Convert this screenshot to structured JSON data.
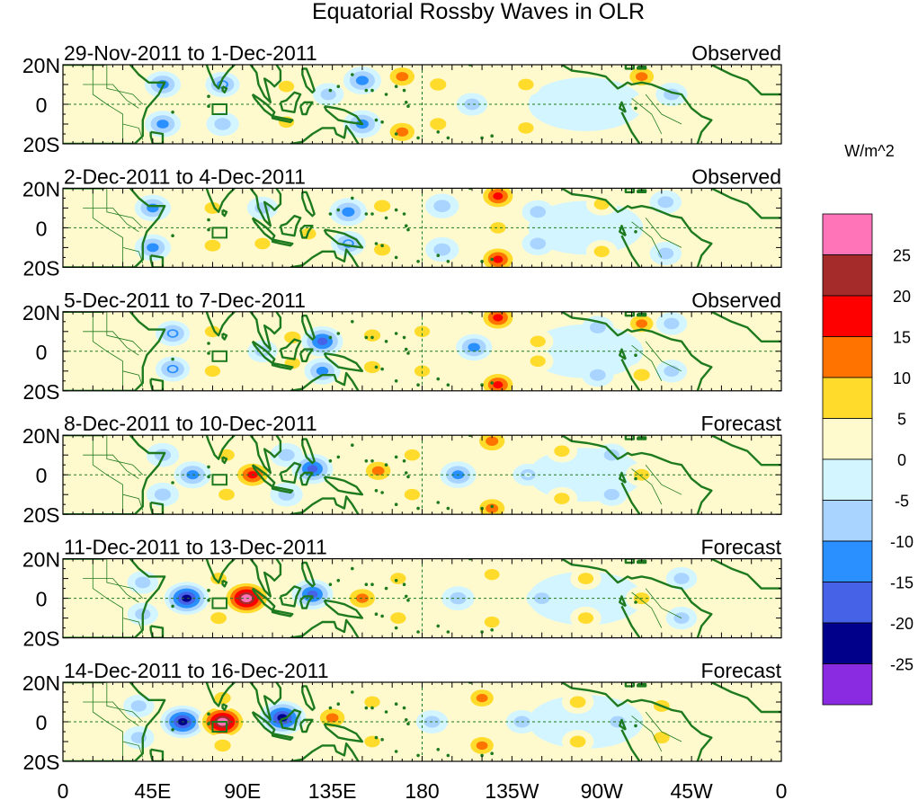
{
  "chart_data": {
    "type": "heatmap",
    "title": "Equatorial Rossby Waves in OLR",
    "units": "W/m^2",
    "x_ticks": [
      "0",
      "45E",
      "90E",
      "135E",
      "180",
      "135W",
      "90W",
      "45W",
      "0"
    ],
    "x_tick_degrees": [
      0,
      45,
      90,
      135,
      180,
      225,
      270,
      315,
      360
    ],
    "y_ticks": [
      "20N",
      "0",
      "20S"
    ],
    "y_tick_degrees": [
      20,
      0,
      -20
    ],
    "xlim": [
      0,
      360
    ],
    "ylim": [
      -20,
      20
    ],
    "dateline_degrees": 180,
    "box_region": {
      "lon": [
        75,
        82
      ],
      "lat": [
        -5,
        0
      ]
    },
    "colorbar": {
      "levels": [
        "25",
        "20",
        "15",
        "10",
        "5",
        "0",
        "-5",
        "-10",
        "-15",
        "-20",
        "-25"
      ],
      "colors": [
        "#ff73b9",
        "#a52a2a",
        "#ff0000",
        "#ff7300",
        "#ffdc2c",
        "#fffacd",
        "#d3f5ff",
        "#a9d4ff",
        "#2a8fff",
        "#4662e6",
        "#00008b",
        "#8a2be2"
      ]
    },
    "panels": [
      {
        "dates": "29-Nov-2011 to 1-Dec-2011",
        "kind": "Observed",
        "features": [
          {
            "lon": 50,
            "lat": 10,
            "value": -12
          },
          {
            "lon": 50,
            "lat": -10,
            "value": -12
          },
          {
            "lon": 80,
            "lat": 10,
            "value": -10
          },
          {
            "lon": 80,
            "lat": -10,
            "value": -8
          },
          {
            "lon": 112,
            "lat": 9,
            "value": 6
          },
          {
            "lon": 112,
            "lat": -9,
            "value": 6
          },
          {
            "lon": 133,
            "lat": 5,
            "value": -6
          },
          {
            "lon": 150,
            "lat": 12,
            "value": -14
          },
          {
            "lon": 150,
            "lat": -10,
            "value": -14
          },
          {
            "lon": 170,
            "lat": 14,
            "value": 13
          },
          {
            "lon": 170,
            "lat": -14,
            "value": 13
          },
          {
            "lon": 188,
            "lat": 10,
            "value": 8
          },
          {
            "lon": 188,
            "lat": -10,
            "value": 8
          },
          {
            "lon": 205,
            "lat": 0,
            "value": -6
          },
          {
            "lon": 232,
            "lat": 10,
            "value": 6
          },
          {
            "lon": 232,
            "lat": -12,
            "value": 6
          },
          {
            "lon": 290,
            "lat": 14,
            "value": 12
          },
          {
            "lon": 292,
            "lat": 0,
            "value": 4
          },
          {
            "lon": 305,
            "lat": 5,
            "value": -7
          }
        ]
      },
      {
        "dates": "2-Dec-2011 to 4-Dec-2011",
        "kind": "Observed",
        "features": [
          {
            "lon": 45,
            "lat": 10,
            "value": -12
          },
          {
            "lon": 45,
            "lat": -10,
            "value": -12
          },
          {
            "lon": 75,
            "lat": 10,
            "value": 7
          },
          {
            "lon": 75,
            "lat": -9,
            "value": 7
          },
          {
            "lon": 100,
            "lat": 10,
            "value": -6
          },
          {
            "lon": 100,
            "lat": -8,
            "value": 6
          },
          {
            "lon": 123,
            "lat": -3,
            "value": 6
          },
          {
            "lon": 143,
            "lat": 8,
            "value": -14
          },
          {
            "lon": 143,
            "lat": -8,
            "value": -10
          },
          {
            "lon": 160,
            "lat": 11,
            "value": 8
          },
          {
            "lon": 160,
            "lat": -11,
            "value": 8
          },
          {
            "lon": 190,
            "lat": 11,
            "value": -9
          },
          {
            "lon": 190,
            "lat": -11,
            "value": -9
          },
          {
            "lon": 218,
            "lat": 16,
            "value": 16
          },
          {
            "lon": 218,
            "lat": -16,
            "value": 16
          },
          {
            "lon": 218,
            "lat": 0,
            "value": 6
          },
          {
            "lon": 238,
            "lat": 8,
            "value": -7
          },
          {
            "lon": 238,
            "lat": -8,
            "value": -7
          },
          {
            "lon": 270,
            "lat": 12,
            "value": 6
          },
          {
            "lon": 270,
            "lat": -12,
            "value": 6
          },
          {
            "lon": 302,
            "lat": 13,
            "value": -7
          },
          {
            "lon": 302,
            "lat": -13,
            "value": -7
          }
        ]
      },
      {
        "dates": "5-Dec-2011 to 7-Dec-2011",
        "kind": "Observed",
        "features": [
          {
            "lon": 55,
            "lat": 9,
            "value": -10
          },
          {
            "lon": 55,
            "lat": -9,
            "value": -10
          },
          {
            "lon": 75,
            "lat": 10,
            "value": 6
          },
          {
            "lon": 75,
            "lat": -10,
            "value": 6
          },
          {
            "lon": 100,
            "lat": 0,
            "value": -5
          },
          {
            "lon": 115,
            "lat": 7,
            "value": 8
          },
          {
            "lon": 115,
            "lat": -6,
            "value": 6
          },
          {
            "lon": 130,
            "lat": 5,
            "value": -18
          },
          {
            "lon": 130,
            "lat": -10,
            "value": -12
          },
          {
            "lon": 155,
            "lat": 8,
            "value": 8
          },
          {
            "lon": 155,
            "lat": -8,
            "value": 8
          },
          {
            "lon": 180,
            "lat": 10,
            "value": 6
          },
          {
            "lon": 180,
            "lat": -10,
            "value": 6
          },
          {
            "lon": 206,
            "lat": 2,
            "value": -12
          },
          {
            "lon": 218,
            "lat": 17,
            "value": 16
          },
          {
            "lon": 218,
            "lat": -17,
            "value": 16
          },
          {
            "lon": 238,
            "lat": 5,
            "value": 6
          },
          {
            "lon": 238,
            "lat": -5,
            "value": 6
          },
          {
            "lon": 268,
            "lat": 12,
            "value": -7
          },
          {
            "lon": 268,
            "lat": -12,
            "value": -7
          },
          {
            "lon": 290,
            "lat": 14,
            "value": 10
          },
          {
            "lon": 290,
            "lat": -12,
            "value": 8
          },
          {
            "lon": 305,
            "lat": 14,
            "value": -6
          },
          {
            "lon": 305,
            "lat": -10,
            "value": -6
          }
        ]
      },
      {
        "dates": "8-Dec-2011 to 10-Dec-2011",
        "kind": "Forecast",
        "features": [
          {
            "lon": 50,
            "lat": 10,
            "value": -8
          },
          {
            "lon": 50,
            "lat": -10,
            "value": -8
          },
          {
            "lon": 65,
            "lat": 0,
            "value": -13
          },
          {
            "lon": 82,
            "lat": 10,
            "value": 7
          },
          {
            "lon": 82,
            "lat": -10,
            "value": 7
          },
          {
            "lon": 95,
            "lat": 0,
            "value": 17
          },
          {
            "lon": 112,
            "lat": 10,
            "value": -8
          },
          {
            "lon": 112,
            "lat": -10,
            "value": -8
          },
          {
            "lon": 125,
            "lat": 3,
            "value": -18
          },
          {
            "lon": 158,
            "lat": 2,
            "value": 13
          },
          {
            "lon": 175,
            "lat": 10,
            "value": 6
          },
          {
            "lon": 175,
            "lat": -10,
            "value": 6
          },
          {
            "lon": 198,
            "lat": 0,
            "value": -12
          },
          {
            "lon": 215,
            "lat": 17,
            "value": 14
          },
          {
            "lon": 215,
            "lat": -17,
            "value": 14
          },
          {
            "lon": 233,
            "lat": 0,
            "value": -5
          },
          {
            "lon": 250,
            "lat": 12,
            "value": 6
          },
          {
            "lon": 250,
            "lat": -12,
            "value": 6
          },
          {
            "lon": 275,
            "lat": 10,
            "value": -6
          },
          {
            "lon": 275,
            "lat": -10,
            "value": -6
          },
          {
            "lon": 290,
            "lat": 0,
            "value": 7
          }
        ]
      },
      {
        "dates": "11-Dec-2011 to 13-Dec-2011",
        "kind": "Forecast",
        "features": [
          {
            "lon": 40,
            "lat": 8,
            "value": -6
          },
          {
            "lon": 40,
            "lat": -8,
            "value": -6
          },
          {
            "lon": 62,
            "lat": 0,
            "value": -22
          },
          {
            "lon": 92,
            "lat": 0,
            "value": 27
          },
          {
            "lon": 78,
            "lat": 10,
            "value": 7
          },
          {
            "lon": 78,
            "lat": -10,
            "value": 7
          },
          {
            "lon": 125,
            "lat": 2,
            "value": -18
          },
          {
            "lon": 150,
            "lat": 0,
            "value": 14
          },
          {
            "lon": 168,
            "lat": 10,
            "value": 6
          },
          {
            "lon": 168,
            "lat": -10,
            "value": 6
          },
          {
            "lon": 198,
            "lat": 0,
            "value": -8
          },
          {
            "lon": 215,
            "lat": 12,
            "value": 5
          },
          {
            "lon": 215,
            "lat": -12,
            "value": 5
          },
          {
            "lon": 240,
            "lat": 0,
            "value": -6
          },
          {
            "lon": 262,
            "lat": 10,
            "value": 6
          },
          {
            "lon": 262,
            "lat": -10,
            "value": 6
          },
          {
            "lon": 290,
            "lat": 0,
            "value": 7
          },
          {
            "lon": 310,
            "lat": 10,
            "value": -6
          },
          {
            "lon": 310,
            "lat": -10,
            "value": -6
          }
        ]
      },
      {
        "dates": "14-Dec-2011 to 16-Dec-2011",
        "kind": "Forecast",
        "features": [
          {
            "lon": 38,
            "lat": 8,
            "value": -6
          },
          {
            "lon": 38,
            "lat": -8,
            "value": -6
          },
          {
            "lon": 60,
            "lat": 0,
            "value": -22
          },
          {
            "lon": 80,
            "lat": 0,
            "value": 27
          },
          {
            "lon": 80,
            "lat": 12,
            "value": 8
          },
          {
            "lon": 80,
            "lat": -12,
            "value": 8
          },
          {
            "lon": 110,
            "lat": 2,
            "value": -24
          },
          {
            "lon": 135,
            "lat": 2,
            "value": 13
          },
          {
            "lon": 155,
            "lat": 10,
            "value": 6
          },
          {
            "lon": 155,
            "lat": -10,
            "value": 6
          },
          {
            "lon": 185,
            "lat": 0,
            "value": -7
          },
          {
            "lon": 210,
            "lat": 12,
            "value": 10
          },
          {
            "lon": 210,
            "lat": -12,
            "value": 10
          },
          {
            "lon": 230,
            "lat": 0,
            "value": -7
          },
          {
            "lon": 258,
            "lat": 10,
            "value": 7
          },
          {
            "lon": 258,
            "lat": -10,
            "value": 7
          },
          {
            "lon": 278,
            "lat": 0,
            "value": -6
          },
          {
            "lon": 300,
            "lat": 8,
            "value": 7
          },
          {
            "lon": 300,
            "lat": -8,
            "value": 7
          }
        ]
      }
    ]
  }
}
